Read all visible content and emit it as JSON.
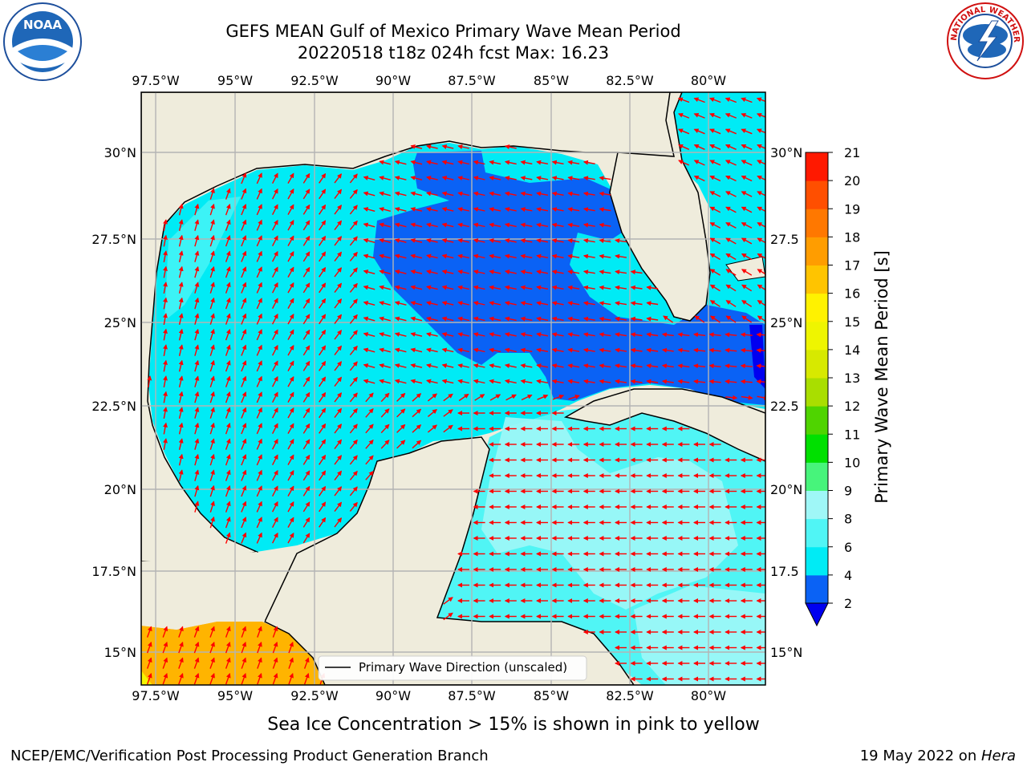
{
  "title": {
    "line1": "GEFS MEAN Gulf of Mexico Primary Wave Mean Period",
    "line2": "20220518 t18z 024h fcst   Max: 16.23"
  },
  "logos": {
    "left": {
      "icon": "noaa-logo",
      "text": "NOAA"
    },
    "right": {
      "icon": "nws-logo",
      "ring_text": "NATIONAL WEATHER SERVICE"
    }
  },
  "axes": {
    "lon_labels": [
      "97.5°W",
      "95°W",
      "92.5°W",
      "90°W",
      "87.5°W",
      "85°W",
      "82.5°W",
      "80°W"
    ],
    "lat_labels_left": [
      "30°N",
      "27.5°N",
      "25°N",
      "22.5°N",
      "20°N",
      "17.5°N",
      "15°N"
    ],
    "lat_labels_right": [
      "30°N",
      "27.5",
      "25°N",
      "22.5",
      "20°N",
      "17.5",
      "15°N"
    ]
  },
  "legend": {
    "label": "Primary Wave Direction (unscaled)"
  },
  "colorbar": {
    "title": "Primary Wave Mean Period [s]",
    "ticks": [
      "2",
      "4",
      "6",
      "8",
      "9",
      "10",
      "11",
      "12",
      "13",
      "14",
      "15",
      "16",
      "17",
      "18",
      "19",
      "20",
      "21"
    ],
    "colors": [
      "#0a62f5",
      "#00ebf5",
      "#50f5f5",
      "#9ff7f7",
      "#47f47b",
      "#00e000",
      "#4fd400",
      "#a9de00",
      "#d7e900",
      "#eff500",
      "#fff200",
      "#ffc400",
      "#ff9d00",
      "#ff7800",
      "#ff4f00",
      "#ff1900"
    ],
    "under_color": "#0000f0"
  },
  "map_colors": {
    "land": "#efecdc",
    "grid": "#b4b4b4",
    "arrow": "#ff0000",
    "coast": "#000000",
    "high_period": "#ffb400"
  },
  "caption": "Sea Ice Concentration > 15% is shown in pink to yellow",
  "footer": {
    "left": "NCEP/EMC/Verification Post Processing Product Generation Branch",
    "right_prefix": "19 May 2022 on ",
    "right_italic": "Hera"
  }
}
